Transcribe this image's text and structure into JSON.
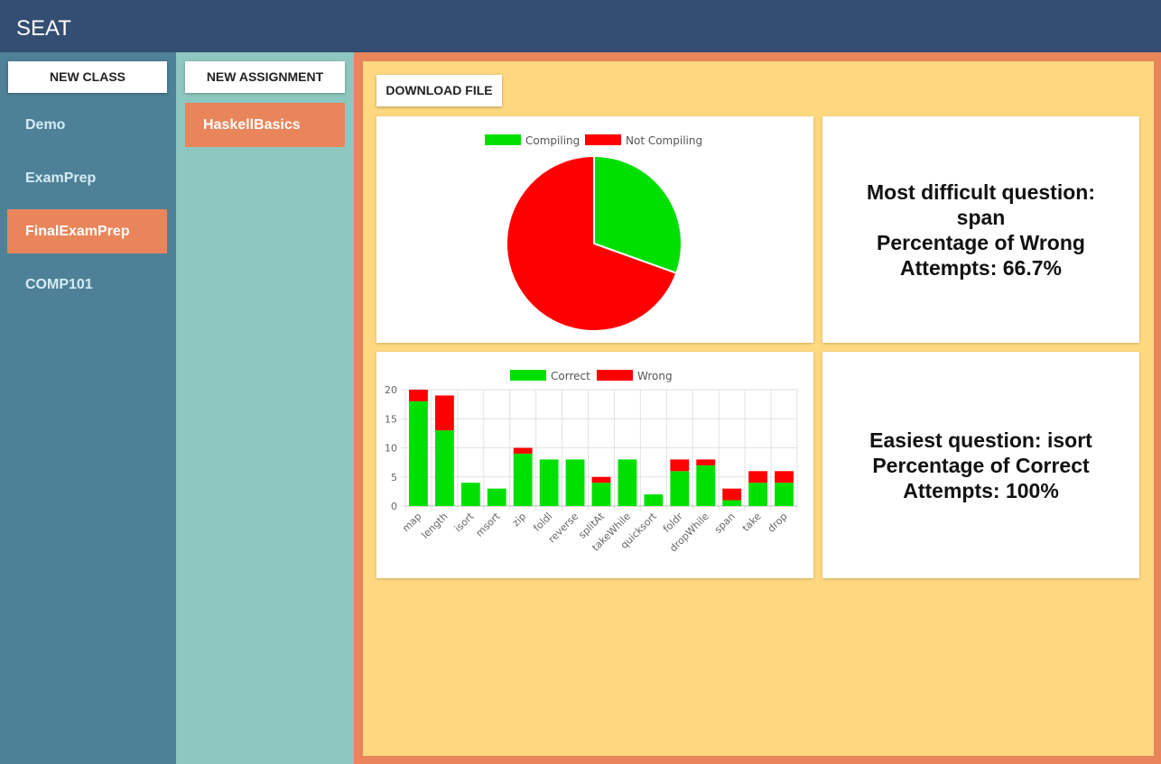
{
  "app": {
    "title": "SEAT"
  },
  "classes": {
    "new_label": "NEW CLASS",
    "items": [
      {
        "label": "Demo",
        "active": false
      },
      {
        "label": "ExamPrep",
        "active": false
      },
      {
        "label": "FinalExamPrep",
        "active": true
      },
      {
        "label": "COMP101",
        "active": false
      }
    ]
  },
  "assignments": {
    "new_label": "NEW ASSIGNMENT",
    "items": [
      {
        "label": "HaskellBasics",
        "active": true
      }
    ]
  },
  "main": {
    "download_label": "DOWNLOAD FILE",
    "difficult": {
      "line1": "Most difficult question:",
      "line2": "span",
      "line3": "Percentage of Wrong",
      "line4": "Attempts: 66.7%"
    },
    "easiest": {
      "line1": "Easiest question: isort",
      "line2": "Percentage of Correct",
      "line3": "Attempts: 100%"
    }
  },
  "colors": {
    "topbar": "#344e72",
    "sidebar_classes": "#4e8197",
    "sidebar_assignments": "#8ec7c0",
    "accent": "#e8855a",
    "panel": "#ffd880",
    "green": "#00e000",
    "red": "#ff0000"
  },
  "chart_data": [
    {
      "type": "pie",
      "labels": [
        "Compiling",
        "Not Compiling"
      ],
      "values": [
        30.5,
        69.5
      ],
      "colors": [
        "#00e000",
        "#ff0000"
      ],
      "legend": "top"
    },
    {
      "type": "bar",
      "stacked": true,
      "categories": [
        "map",
        "length",
        "isort",
        "msort",
        "zip",
        "foldl",
        "reverse",
        "splitAt",
        "takeWhile",
        "quicksort",
        "foldr",
        "dropWhile",
        "span",
        "take",
        "drop"
      ],
      "series": [
        {
          "name": "Correct",
          "color": "#00e000",
          "values": [
            18,
            13,
            4,
            3,
            9,
            8,
            8,
            4,
            8,
            2,
            6,
            7,
            1,
            4,
            4
          ]
        },
        {
          "name": "Wrong",
          "color": "#ff0000",
          "values": [
            2,
            6,
            0,
            0,
            1,
            0,
            0,
            1,
            0,
            0,
            2,
            1,
            2,
            2,
            2
          ]
        }
      ],
      "ylim": [
        0,
        20
      ],
      "yticks": [
        0,
        5,
        10,
        15,
        20
      ],
      "grid": true,
      "legend": "top"
    }
  ]
}
